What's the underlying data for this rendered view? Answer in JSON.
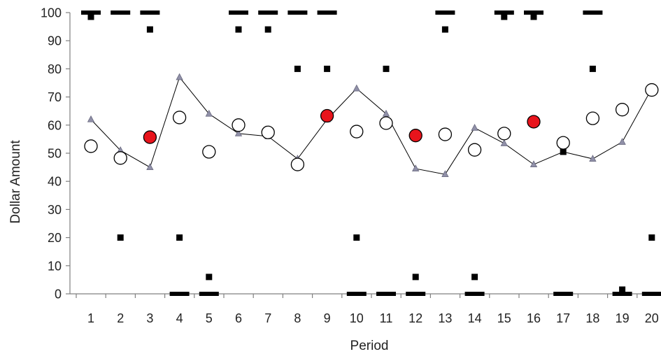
{
  "chart_data": {
    "type": "scatter",
    "xlabel": "Period",
    "ylabel": "Dollar Amount",
    "x": [
      1,
      2,
      3,
      4,
      5,
      6,
      7,
      8,
      9,
      10,
      11,
      12,
      13,
      14,
      15,
      16,
      17,
      18,
      19,
      20
    ],
    "xticks": [
      "1",
      "2",
      "3",
      "4",
      "5",
      "6",
      "7",
      "8",
      "9",
      "10",
      "11",
      "12",
      "13",
      "14",
      "15",
      "16",
      "17",
      "18",
      "19",
      "20"
    ],
    "ylim": [
      0,
      100
    ],
    "yticks": [
      "0",
      "10",
      "20",
      "30",
      "40",
      "50",
      "60",
      "70",
      "80",
      "90",
      "100"
    ],
    "grid": false,
    "colors": {
      "line": "#000000",
      "triangle": "#9090a8",
      "triangle_edge": "#6a6a80",
      "circle_fill": "#ffffff",
      "highlight_fill": "#e8141c",
      "marker": "#000000"
    },
    "series": [
      {
        "marker": "triangle-line",
        "values": [
          62,
          51,
          45,
          77,
          64,
          57,
          56,
          48,
          62,
          73,
          64,
          44.5,
          42.5,
          59,
          53.5,
          46,
          50.5,
          48,
          54,
          73
        ]
      },
      {
        "marker": "circle",
        "points": [
          [
            1,
            52.5
          ],
          [
            2,
            48.3
          ],
          [
            4,
            62.7
          ],
          [
            5,
            50.5
          ],
          [
            6,
            60
          ],
          [
            7,
            57.4
          ],
          [
            8,
            46
          ],
          [
            10,
            57.7
          ],
          [
            11,
            60.7
          ],
          [
            13,
            56.7
          ],
          [
            14,
            51.2
          ],
          [
            15,
            57
          ],
          [
            17,
            53.7
          ],
          [
            18,
            62.4
          ],
          [
            19,
            65.5
          ],
          [
            20,
            72.5
          ]
        ]
      },
      {
        "marker": "circle-red",
        "points": [
          [
            3,
            55.7
          ],
          [
            9,
            63.3
          ],
          [
            12,
            56.3
          ],
          [
            16,
            61.2
          ]
        ]
      },
      {
        "marker": "square",
        "points": [
          [
            1,
            98.5
          ],
          [
            2,
            20
          ],
          [
            3,
            94
          ],
          [
            4,
            20
          ],
          [
            5,
            6
          ],
          [
            6,
            94
          ],
          [
            7,
            94
          ],
          [
            8,
            80
          ],
          [
            9,
            80
          ],
          [
            10,
            20
          ],
          [
            11,
            80
          ],
          [
            12,
            6
          ],
          [
            13,
            94
          ],
          [
            14,
            6
          ],
          [
            15,
            98.5
          ],
          [
            16,
            98.5
          ],
          [
            17,
            50.5
          ],
          [
            18,
            80
          ],
          [
            19,
            1.5
          ],
          [
            20,
            20
          ]
        ]
      },
      {
        "marker": "dash",
        "points": [
          [
            1,
            100
          ],
          [
            2,
            100
          ],
          [
            3,
            100
          ],
          [
            4,
            0
          ],
          [
            5,
            0
          ],
          [
            6,
            100
          ],
          [
            7,
            100
          ],
          [
            8,
            100
          ],
          [
            9,
            100
          ],
          [
            10,
            0
          ],
          [
            11,
            0
          ],
          [
            12,
            0
          ],
          [
            13,
            100
          ],
          [
            14,
            0
          ],
          [
            15,
            100
          ],
          [
            16,
            100
          ],
          [
            17,
            0
          ],
          [
            18,
            100
          ],
          [
            19,
            0
          ],
          [
            20,
            0
          ]
        ]
      }
    ]
  }
}
